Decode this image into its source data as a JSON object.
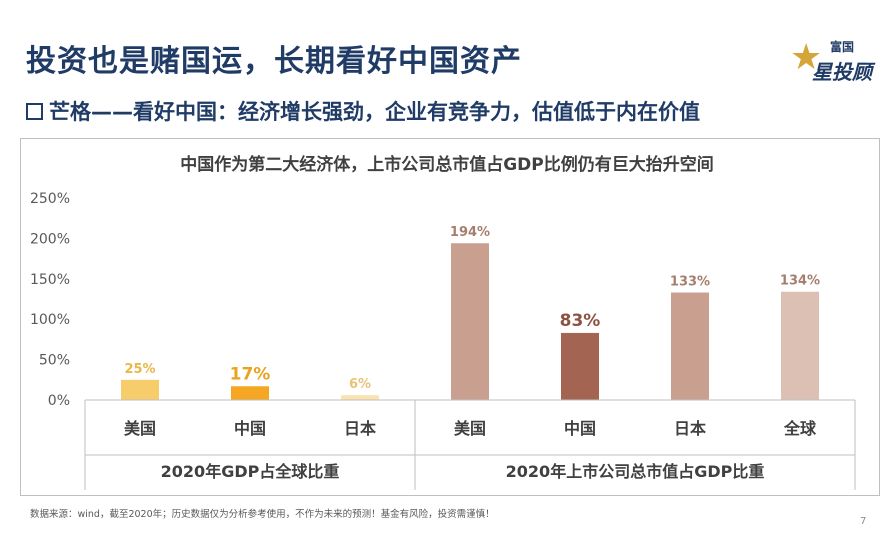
{
  "slide": {
    "title": "投资也是赌国运，长期看好中国资产",
    "subtitle": "芒格——看好中国：经济增长强劲，企业有竞争力，估值低于内在价值",
    "footnote": "数据来源：wind，截至2020年；历史数据仅为分析参考使用，不作为未来的预测！基金有风险，投资需谨慎！",
    "page_number": "7"
  },
  "logo": {
    "top_text": "富国",
    "main_text": "星投顾",
    "star": "★"
  },
  "chart_data": {
    "type": "bar",
    "title": "中国作为第二大经济体，上市公司总市值占GDP比例仍有巨大抬升空间",
    "y_ticks": [
      "0%",
      "50%",
      "100%",
      "150%",
      "200%",
      "250%"
    ],
    "ylim": [
      0,
      250
    ],
    "grid": false,
    "groups": [
      {
        "label": "2020年GDP占全球比重",
        "categories": [
          "美国",
          "中国",
          "日本"
        ],
        "values": [
          25,
          17,
          6
        ],
        "value_labels": [
          "25%",
          "17%",
          "6%"
        ],
        "colors": [
          "#f7cd6c",
          "#f5a623",
          "#f9e3b1"
        ],
        "label_colors": [
          "#e8b84a",
          "#eaa21f",
          "#e8c27a"
        ]
      },
      {
        "label": "2020年上市公司总市值占GDP比重",
        "categories": [
          "美国",
          "中国",
          "日本",
          "全球"
        ],
        "values": [
          194,
          83,
          133,
          134
        ],
        "value_labels": [
          "194%",
          "83%",
          "133%",
          "134%"
        ],
        "colors": [
          "#c9a090",
          "#a36452",
          "#c9a090",
          "#dcc0b4"
        ],
        "label_colors": [
          "#a57e6e",
          "#8e5242",
          "#a57e6e",
          "#a57e6e"
        ]
      }
    ]
  }
}
